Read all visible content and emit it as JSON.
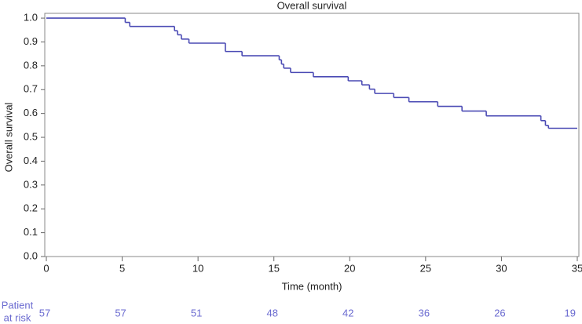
{
  "chart_data": {
    "type": "step",
    "title": "Overall survival",
    "x_label": "Time (month)",
    "y_label": "Overall survival",
    "x": [
      0,
      5.2,
      5.5,
      8.45,
      8.65,
      8.9,
      9.4,
      11.8,
      12.9,
      15.35,
      15.5,
      15.65,
      16.1,
      17.6,
      19.9,
      20.8,
      21.3,
      21.65,
      22.9,
      23.9,
      25.8,
      27.4,
      29.0,
      32.6,
      32.9,
      33.1
    ],
    "values": [
      1.0,
      0.982,
      0.965,
      0.947,
      0.93,
      0.912,
      0.895,
      0.86,
      0.842,
      0.825,
      0.807,
      0.79,
      0.772,
      0.754,
      0.737,
      0.72,
      0.702,
      0.684,
      0.667,
      0.649,
      0.63,
      0.61,
      0.59,
      0.57,
      0.55,
      0.538
    ],
    "color": "#4a4ab4",
    "xlim": [
      0,
      35
    ],
    "xticks": [
      0,
      5,
      10,
      15,
      20,
      25,
      30,
      35
    ],
    "ylim": [
      0,
      1.02
    ],
    "yticks": [
      {
        "value": 0,
        "label": "0.0"
      },
      0.1,
      0.2,
      0.3,
      0.4,
      0.5,
      0.6,
      0.7,
      0.8,
      0.9,
      {
        "value": 1,
        "label": "1.0"
      }
    ],
    "at_risk_label": [
      "Patient",
      "at risk"
    ],
    "at_risk_values": [
      57,
      57,
      51,
      48,
      42,
      36,
      26,
      19
    ],
    "at_risk_color": "#6a6ad0"
  }
}
